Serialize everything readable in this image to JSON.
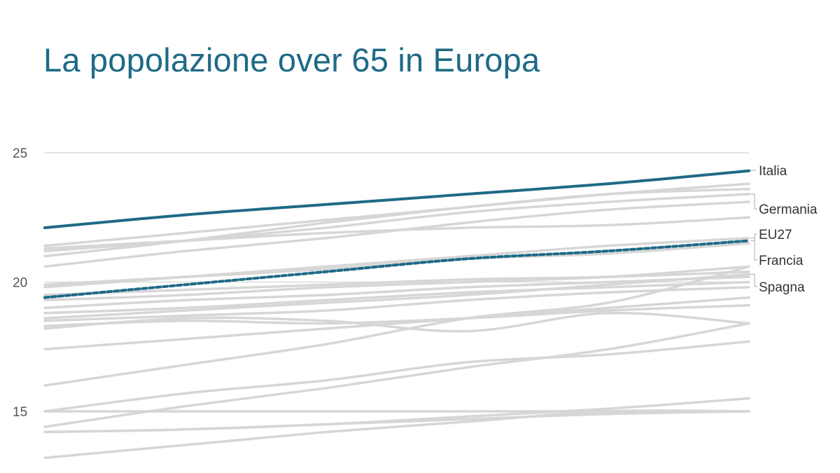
{
  "title": "La popolazione over 65 in Europa",
  "colors": {
    "highlight": "#1f6a86",
    "background_series": "#d6d6d6",
    "grid": "#dcdcdc"
  },
  "chart_data": {
    "type": "line",
    "title": "La popolazione over 65 in Europa",
    "xlabel": "",
    "ylabel": "",
    "ylim": [
      12.8,
      25.6
    ],
    "y_ticks": [
      15,
      20,
      25
    ],
    "grid": true,
    "legend": "direct labels at right end",
    "points_per_series": 6,
    "series": [
      {
        "name": "Italia",
        "values": [
          22.1,
          22.6,
          23.0,
          23.4,
          23.8,
          24.3
        ],
        "highlight": true,
        "dashed": false
      },
      {
        "name": "EU27",
        "values": [
          19.4,
          19.9,
          20.4,
          20.9,
          21.2,
          21.6
        ],
        "highlight": true,
        "dashed": true
      },
      {
        "values": [
          21.2,
          21.6,
          22.1,
          22.7,
          23.1,
          23.4
        ],
        "label": "Germania"
      },
      {
        "values": [
          19.8,
          20.2,
          20.6,
          21.0,
          21.4,
          21.7
        ],
        "label": "Francia"
      },
      {
        "values": [
          18.6,
          18.9,
          19.2,
          19.5,
          19.9,
          20.3
        ],
        "label": "Spagna"
      },
      {
        "values": [
          21.4,
          21.9,
          22.4,
          22.9,
          23.4,
          23.8
        ]
      },
      {
        "values": [
          21.0,
          21.6,
          22.3,
          22.9,
          23.4,
          23.6
        ]
      },
      {
        "values": [
          20.6,
          21.2,
          21.7,
          22.3,
          22.8,
          23.1
        ]
      },
      {
        "values": [
          21.3,
          21.6,
          21.9,
          22.1,
          22.2,
          22.5
        ]
      },
      {
        "values": [
          19.9,
          20.2,
          20.5,
          20.9,
          21.1,
          21.5
        ]
      },
      {
        "values": [
          19.5,
          19.7,
          19.9,
          20.1,
          20.2,
          20.4
        ]
      },
      {
        "values": [
          19.3,
          19.5,
          19.8,
          20.0,
          20.2,
          20.6
        ]
      },
      {
        "values": [
          19.0,
          19.3,
          19.5,
          19.8,
          20.0,
          20.2
        ]
      },
      {
        "values": [
          18.8,
          19.0,
          19.3,
          19.6,
          19.8,
          20.0
        ]
      },
      {
        "values": [
          18.5,
          18.7,
          18.9,
          19.3,
          19.6,
          19.8
        ]
      },
      {
        "values": [
          18.2,
          18.6,
          18.5,
          18.1,
          18.8,
          18.4
        ]
      },
      {
        "values": [
          18.3,
          18.5,
          18.4,
          18.6,
          18.9,
          19.1
        ]
      },
      {
        "values": [
          17.4,
          17.8,
          18.2,
          18.6,
          19.0,
          19.4
        ]
      },
      {
        "values": [
          16.0,
          16.8,
          17.6,
          18.6,
          19.2,
          20.6
        ]
      },
      {
        "values": [
          15.0,
          15.7,
          16.2,
          16.9,
          17.2,
          17.7
        ]
      },
      {
        "values": [
          14.4,
          15.2,
          15.9,
          16.7,
          17.4,
          18.4
        ]
      },
      {
        "values": [
          15.0,
          15.0,
          15.0,
          15.0,
          15.0,
          15.0
        ]
      },
      {
        "values": [
          14.2,
          14.3,
          14.5,
          14.7,
          14.9,
          15.0
        ]
      },
      {
        "values": [
          14.2,
          14.3,
          14.5,
          14.8,
          15.1,
          15.5
        ]
      },
      {
        "values": [
          13.2,
          13.7,
          14.2,
          14.6,
          15.0,
          15.0
        ]
      }
    ],
    "end_labels": [
      "Italia",
      "Germania",
      "EU27",
      "Francia",
      "Spagna"
    ]
  }
}
